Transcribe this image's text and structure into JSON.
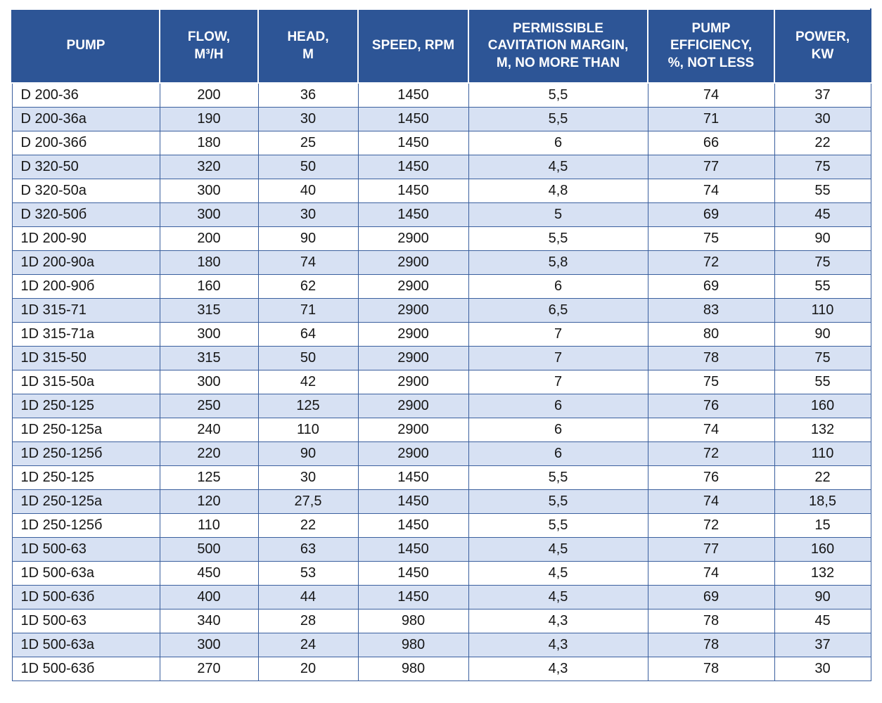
{
  "table": {
    "header_bg": "#2d5596",
    "header_text_color": "#ffffff",
    "row_alt_bg": "#d7e1f3",
    "border_color": "#3a5f9e",
    "columns": [
      {
        "id": "pump",
        "label": "PUMP"
      },
      {
        "id": "flow",
        "label": "FLOW,\nM³/H"
      },
      {
        "id": "head",
        "label": "HEAD,\nM"
      },
      {
        "id": "speed",
        "label": "SPEED, RPM"
      },
      {
        "id": "cavitation",
        "label": "PERMISSIBLE\nCAVITATION MARGIN,\nM, NO MORE THAN"
      },
      {
        "id": "efficiency",
        "label": "PUMP\nEFFICIENCY,\n%, NOT LESS"
      },
      {
        "id": "power",
        "label": "POWER,\nKW"
      }
    ],
    "rows": [
      [
        "D 200-36",
        "200",
        "36",
        "1450",
        "5,5",
        "74",
        "37"
      ],
      [
        "D 200-36a",
        "190",
        "30",
        "1450",
        "5,5",
        "71",
        "30"
      ],
      [
        "D 200-36б",
        "180",
        "25",
        "1450",
        "6",
        "66",
        "22"
      ],
      [
        "D 320-50",
        "320",
        "50",
        "1450",
        "4,5",
        "77",
        "75"
      ],
      [
        "D 320-50a",
        "300",
        "40",
        "1450",
        "4,8",
        "74",
        "55"
      ],
      [
        "D 320-50б",
        "300",
        "30",
        "1450",
        "5",
        "69",
        "45"
      ],
      [
        "1D 200-90",
        "200",
        "90",
        "2900",
        "5,5",
        "75",
        "90"
      ],
      [
        "1D 200-90a",
        "180",
        "74",
        "2900",
        "5,8",
        "72",
        "75"
      ],
      [
        "1D 200-90б",
        "160",
        "62",
        "2900",
        "6",
        "69",
        "55"
      ],
      [
        "1D 315-71",
        "315",
        "71",
        "2900",
        "6,5",
        "83",
        "110"
      ],
      [
        "1D 315-71a",
        "300",
        "64",
        "2900",
        "7",
        "80",
        "90"
      ],
      [
        "1D 315-50",
        "315",
        "50",
        "2900",
        "7",
        "78",
        "75"
      ],
      [
        "1D 315-50a",
        "300",
        "42",
        "2900",
        "7",
        "75",
        "55"
      ],
      [
        "1D 250-125",
        "250",
        "125",
        "2900",
        "6",
        "76",
        "160"
      ],
      [
        "1D 250-125a",
        "240",
        "110",
        "2900",
        "6",
        "74",
        "132"
      ],
      [
        "1D 250-125б",
        "220",
        "90",
        "2900",
        "6",
        "72",
        "110"
      ],
      [
        "1D 250-125",
        "125",
        "30",
        "1450",
        "5,5",
        "76",
        "22"
      ],
      [
        "1D 250-125a",
        "120",
        "27,5",
        "1450",
        "5,5",
        "74",
        "18,5"
      ],
      [
        "1D 250-125б",
        "110",
        "22",
        "1450",
        "5,5",
        "72",
        "15"
      ],
      [
        "1D 500-63",
        "500",
        "63",
        "1450",
        "4,5",
        "77",
        "160"
      ],
      [
        "1D 500-63a",
        "450",
        "53",
        "1450",
        "4,5",
        "74",
        "132"
      ],
      [
        "1D 500-63б",
        "400",
        "44",
        "1450",
        "4,5",
        "69",
        "90"
      ],
      [
        "1D 500-63",
        "340",
        "28",
        "980",
        "4,3",
        "78",
        "45"
      ],
      [
        "1D 500-63a",
        "300",
        "24",
        "980",
        "4,3",
        "78",
        "37"
      ],
      [
        "1D 500-63б",
        "270",
        "20",
        "980",
        "4,3",
        "78",
        "30"
      ]
    ]
  }
}
